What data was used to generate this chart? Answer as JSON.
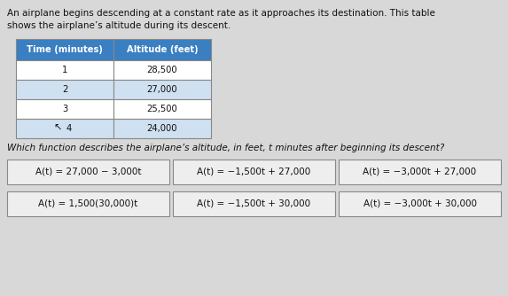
{
  "bg_color": "#d8d8d8",
  "intro_text_line1": "An airplane begins descending at a constant rate as it approaches its destination. This table",
  "intro_text_line2": "shows the airplane’s altitude during its descent.",
  "table_header": [
    "Time (minutes)",
    "Altitude (feet)"
  ],
  "table_header_bg": "#3a7fc1",
  "table_header_color": "#ffffff",
  "table_rows": [
    [
      "1",
      "28,500"
    ],
    [
      "2",
      "27,000"
    ],
    [
      "3",
      "25,500"
    ],
    [
      "4",
      "24,000"
    ]
  ],
  "table_row_bg_even": "#ffffff",
  "table_row_bg_odd": "#cfe0f0",
  "table_border_color": "#888888",
  "question_text": "Which function describes the airplane’s altitude, in feet, t minutes after beginning its descent?",
  "answer_boxes": [
    [
      "A(t) = 27,000 − 3,000t",
      "A(t) = −1,500t + 27,000",
      "A(t) = −3,000t + 27,000"
    ],
    [
      "A(t) = 1,500(30,000)t",
      "A(t) = −1,500t + 30,000",
      "A(t) = −3,000t + 30,000"
    ]
  ],
  "box_bg": "#eeeeee",
  "box_border": "#888888",
  "text_color": "#111111"
}
